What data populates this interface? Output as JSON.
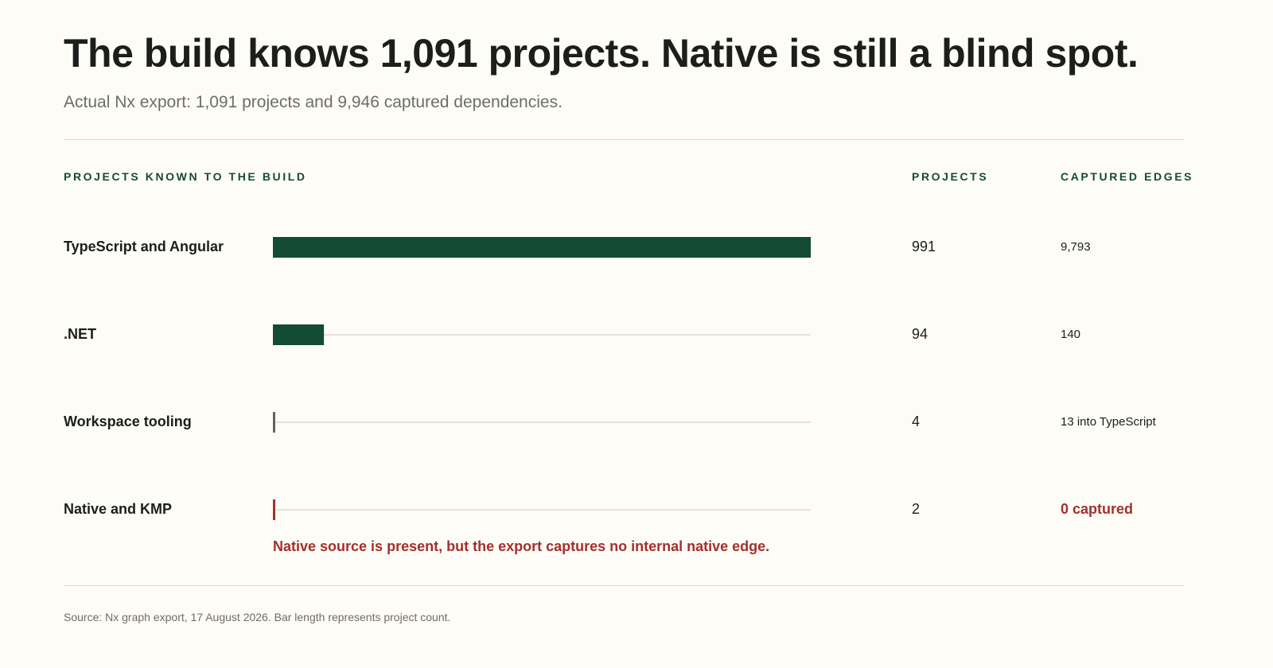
{
  "title": "The build knows 1,091 projects. Native is still a blind spot.",
  "subtitle": "Actual Nx export: 1,091 projects and 9,946 captured dependencies.",
  "columns": {
    "category": "PROJECTS KNOWN TO THE BUILD",
    "projects": "PROJECTS",
    "edges": "CAPTURED EDGES"
  },
  "source": "Source: Nx graph export, 17 August 2026. Bar length represents project count.",
  "colors": {
    "primary": "#134b35",
    "neutral": "#6b5e5b",
    "alert": "#a3302b",
    "track": "#dddbd4"
  },
  "chart_data": {
    "type": "bar",
    "orientation": "horizontal",
    "xlim": [
      0,
      991
    ],
    "grid": false,
    "categories": [
      "TypeScript and Angular",
      ".NET",
      "Workspace tooling",
      "Native and KMP"
    ],
    "values": [
      991,
      94,
      4,
      2
    ],
    "rows": [
      {
        "label": "TypeScript and Angular",
        "projects": 991,
        "projects_label": "991",
        "edges_label": "9,793",
        "color": "#134b35",
        "alert": false
      },
      {
        "label": ".NET",
        "projects": 94,
        "projects_label": "94",
        "edges_label": "140",
        "color": "#134b35",
        "alert": false
      },
      {
        "label": "Workspace tooling",
        "projects": 4,
        "projects_label": "4",
        "edges_label": "13 into TypeScript",
        "color": "#6b5e5b",
        "alert": false
      },
      {
        "label": "Native and KMP",
        "projects": 2,
        "projects_label": "2",
        "edges_label": "0 captured",
        "color": "#a3302b",
        "alert": true
      }
    ],
    "annotation": "Native source is present, but the export captures no internal native edge."
  }
}
